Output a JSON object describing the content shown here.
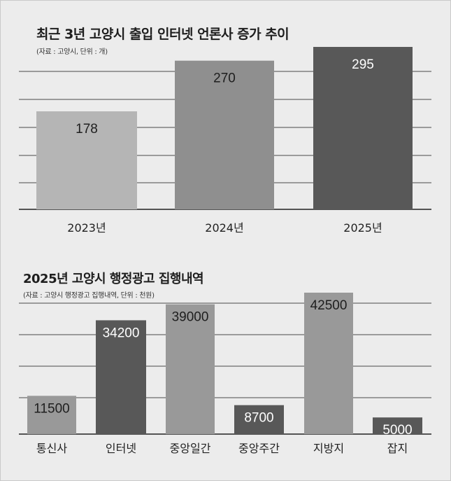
{
  "chart_data": [
    {
      "type": "bar",
      "title": "최근 3년 고양시 출입 인터넷 언론사 증가 추이",
      "source": "(자료 : 고양시, 단위 : 개)",
      "categories": [
        "2023년",
        "2024년",
        "2025년"
      ],
      "values": [
        178,
        270,
        295
      ],
      "value_labels": [
        "178",
        "270",
        "295"
      ],
      "bar_colors": [
        "#b5b5b5",
        "#8f8f8f",
        "#585858"
      ],
      "label_colors": [
        "#1e1e1e",
        "#1e1e1e",
        "#ffffff"
      ],
      "ylim": [
        0,
        300
      ],
      "grid": true
    },
    {
      "type": "bar",
      "title": "2025년 고양시 행정광고 집행내역",
      "source": "(자료 : 고양시 행정광고 집행내역, 단위 : 천원)",
      "categories": [
        "통신사",
        "인터넷",
        "중앙일간",
        "중앙주간",
        "지방지",
        "잡지"
      ],
      "values": [
        11500,
        34200,
        39000,
        8700,
        42500,
        5000
      ],
      "value_labels": [
        "11500",
        "34200",
        "39000",
        "8700",
        "42500",
        "5000"
      ],
      "bar_colors": [
        "#999999",
        "#585858",
        "#999999",
        "#585858",
        "#999999",
        "#585858"
      ],
      "label_colors": [
        "#1e1e1e",
        "#ffffff",
        "#1e1e1e",
        "#ffffff",
        "#1e1e1e",
        "#ffffff"
      ],
      "ylim": [
        0,
        44000
      ],
      "grid": true
    }
  ]
}
